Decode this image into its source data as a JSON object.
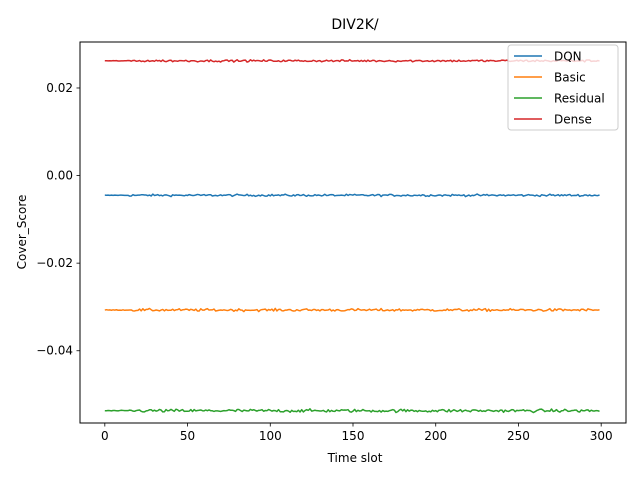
{
  "chart_data": {
    "type": "line",
    "title": "DIV2K/",
    "xlabel": "Time slot",
    "ylabel": "Cover_Score",
    "xlim": [
      -15,
      315
    ],
    "ylim": [
      -0.0565,
      0.0305
    ],
    "xticks": [
      0,
      50,
      100,
      150,
      200,
      250,
      300
    ],
    "yticks": [
      -0.04,
      -0.02,
      0.0,
      0.02
    ],
    "xtick_labels": [
      "0",
      "50",
      "100",
      "150",
      "200",
      "250",
      "300"
    ],
    "ytick_labels": [
      "−0.04",
      "−0.02",
      "0.00",
      "0.02"
    ],
    "grid": false,
    "legend": "top-right",
    "x_range": [
      0,
      299
    ],
    "series": [
      {
        "name": "DQN",
        "color": "#1f77b4",
        "base": -0.0045,
        "noise": 0.0004
      },
      {
        "name": "Basic",
        "color": "#ff7f0e",
        "base": -0.0307,
        "noise": 0.0005
      },
      {
        "name": "Residual",
        "color": "#2ca02c",
        "base": -0.0537,
        "noise": 0.0006
      },
      {
        "name": "Dense",
        "color": "#d62728",
        "base": 0.0262,
        "noise": 0.0004
      }
    ]
  }
}
